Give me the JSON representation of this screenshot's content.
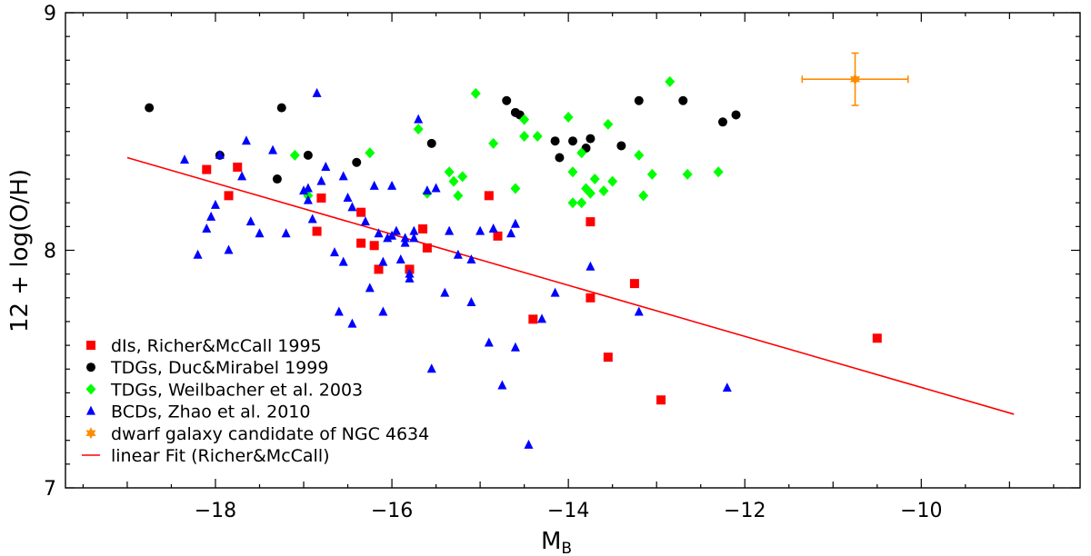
{
  "chart_data": {
    "type": "scatter",
    "title": "",
    "xlabel_main": "M",
    "xlabel_sub": "B",
    "ylabel": "12 + log(O/H)",
    "xlim": [
      -19.7,
      -8.2
    ],
    "ylim": [
      7.0,
      9.0
    ],
    "x_ticks": [
      -18,
      -16,
      -14,
      -12,
      -10
    ],
    "x_tick_labels": [
      "−18",
      "−16",
      "−14",
      "−12",
      "−10"
    ],
    "y_ticks": [
      7,
      8,
      9
    ],
    "y_tick_labels": [
      "7",
      "8",
      "9"
    ],
    "grid": false,
    "legend_position": "bottom-left",
    "series": [
      {
        "name": "dIs, Richer&McCall 1995",
        "marker": "square",
        "color": "#ff0000",
        "points": [
          [
            -18.1,
            8.34
          ],
          [
            -17.75,
            8.35
          ],
          [
            -17.85,
            8.23
          ],
          [
            -16.8,
            8.22
          ],
          [
            -16.35,
            8.16
          ],
          [
            -16.85,
            8.08
          ],
          [
            -16.35,
            8.03
          ],
          [
            -16.2,
            8.02
          ],
          [
            -16.15,
            7.92
          ],
          [
            -15.65,
            8.09
          ],
          [
            -15.6,
            8.01
          ],
          [
            -15.8,
            7.92
          ],
          [
            -14.9,
            8.23
          ],
          [
            -14.8,
            8.06
          ],
          [
            -14.4,
            7.71
          ],
          [
            -13.75,
            8.12
          ],
          [
            -13.75,
            7.8
          ],
          [
            -13.55,
            7.55
          ],
          [
            -13.25,
            7.86
          ],
          [
            -12.95,
            7.37
          ],
          [
            -10.5,
            7.63
          ]
        ]
      },
      {
        "name": "TDGs, Duc&Mirabel 1999",
        "marker": "circle",
        "color": "#000000",
        "points": [
          [
            -18.75,
            8.6
          ],
          [
            -17.25,
            8.6
          ],
          [
            -17.95,
            8.4
          ],
          [
            -16.95,
            8.4
          ],
          [
            -17.3,
            8.3
          ],
          [
            -16.4,
            8.37
          ],
          [
            -15.55,
            8.45
          ],
          [
            -14.7,
            8.63
          ],
          [
            -14.6,
            8.58
          ],
          [
            -14.55,
            8.57
          ],
          [
            -14.15,
            8.46
          ],
          [
            -13.95,
            8.46
          ],
          [
            -13.8,
            8.43
          ],
          [
            -13.75,
            8.47
          ],
          [
            -14.1,
            8.39
          ],
          [
            -13.4,
            8.44
          ],
          [
            -13.2,
            8.63
          ],
          [
            -12.7,
            8.63
          ],
          [
            -12.25,
            8.54
          ],
          [
            -12.1,
            8.57
          ]
        ]
      },
      {
        "name": "TDGs, Weilbacher et al. 2003",
        "marker": "diamond",
        "color": "#00ff00",
        "points": [
          [
            -17.1,
            8.4
          ],
          [
            -16.25,
            8.41
          ],
          [
            -16.95,
            8.23
          ],
          [
            -15.7,
            8.51
          ],
          [
            -15.6,
            8.24
          ],
          [
            -15.35,
            8.33
          ],
          [
            -15.3,
            8.29
          ],
          [
            -15.2,
            8.31
          ],
          [
            -15.25,
            8.23
          ],
          [
            -15.05,
            8.66
          ],
          [
            -14.85,
            8.45
          ],
          [
            -14.6,
            8.26
          ],
          [
            -14.5,
            8.48
          ],
          [
            -14.5,
            8.55
          ],
          [
            -14.35,
            8.48
          ],
          [
            -14.0,
            8.56
          ],
          [
            -13.95,
            8.33
          ],
          [
            -13.95,
            8.2
          ],
          [
            -13.85,
            8.2
          ],
          [
            -13.85,
            8.41
          ],
          [
            -13.8,
            8.26
          ],
          [
            -13.75,
            8.24
          ],
          [
            -13.7,
            8.3
          ],
          [
            -13.6,
            8.25
          ],
          [
            -13.55,
            8.53
          ],
          [
            -13.5,
            8.29
          ],
          [
            -13.2,
            8.4
          ],
          [
            -13.05,
            8.32
          ],
          [
            -13.15,
            8.23
          ],
          [
            -12.85,
            8.71
          ],
          [
            -12.65,
            8.32
          ],
          [
            -12.3,
            8.33
          ]
        ]
      },
      {
        "name": "BCDs, Zhao et al. 2010",
        "marker": "triangle",
        "color": "#0000ff",
        "points": [
          [
            -18.35,
            8.38
          ],
          [
            -18.2,
            7.98
          ],
          [
            -18.0,
            8.19
          ],
          [
            -17.95,
            8.4
          ],
          [
            -18.05,
            8.14
          ],
          [
            -18.1,
            8.09
          ],
          [
            -17.85,
            8.0
          ],
          [
            -17.65,
            8.46
          ],
          [
            -17.6,
            8.12
          ],
          [
            -17.5,
            8.07
          ],
          [
            -17.35,
            8.42
          ],
          [
            -17.2,
            8.07
          ],
          [
            -17.0,
            8.25
          ],
          [
            -16.95,
            8.26
          ],
          [
            -16.95,
            8.21
          ],
          [
            -16.9,
            8.13
          ],
          [
            -16.85,
            8.66
          ],
          [
            -16.8,
            8.29
          ],
          [
            -16.75,
            8.35
          ],
          [
            -16.65,
            7.99
          ],
          [
            -16.6,
            7.74
          ],
          [
            -16.55,
            7.95
          ],
          [
            -16.5,
            8.22
          ],
          [
            -16.45,
            8.18
          ],
          [
            -16.45,
            7.69
          ],
          [
            -16.3,
            8.12
          ],
          [
            -16.25,
            7.84
          ],
          [
            -16.2,
            8.27
          ],
          [
            -16.15,
            8.07
          ],
          [
            -16.1,
            7.74
          ],
          [
            -16.0,
            8.27
          ],
          [
            -16.0,
            8.06
          ],
          [
            -15.95,
            8.08
          ],
          [
            -15.85,
            8.05
          ],
          [
            -15.85,
            8.03
          ],
          [
            -15.8,
            7.9
          ],
          [
            -15.8,
            7.88
          ],
          [
            -15.75,
            8.05
          ],
          [
            -15.75,
            8.08
          ],
          [
            -15.7,
            8.55
          ],
          [
            -15.55,
            7.5
          ],
          [
            -15.5,
            8.26
          ],
          [
            -15.4,
            7.82
          ],
          [
            -15.35,
            8.08
          ],
          [
            -15.25,
            7.98
          ],
          [
            -15.1,
            7.78
          ],
          [
            -15.1,
            7.96
          ],
          [
            -15.0,
            8.08
          ],
          [
            -14.9,
            7.61
          ],
          [
            -14.85,
            8.09
          ],
          [
            -14.75,
            7.43
          ],
          [
            -14.65,
            8.07
          ],
          [
            -14.6,
            7.59
          ],
          [
            -14.6,
            8.11
          ],
          [
            -14.45,
            7.18
          ],
          [
            -14.3,
            7.71
          ],
          [
            -14.15,
            7.82
          ],
          [
            -13.75,
            7.93
          ],
          [
            -13.2,
            7.74
          ],
          [
            -12.2,
            7.42
          ],
          [
            -16.55,
            8.31
          ],
          [
            -16.05,
            8.05
          ],
          [
            -15.9,
            7.96
          ],
          [
            -17.7,
            8.31
          ],
          [
            -16.1,
            7.95
          ],
          [
            -15.6,
            8.25
          ]
        ]
      },
      {
        "name": "dwarf galaxy candidate of NGC 4634",
        "marker": "star",
        "color": "#ff8c00",
        "points": [
          [
            -10.75,
            8.72
          ]
        ],
        "x_err": 0.6,
        "y_err": 0.11
      }
    ],
    "fit_line": {
      "name": "linear Fit (Richer&McCall)",
      "color": "#ff0000",
      "x": [
        -19.0,
        -8.95
      ],
      "y": [
        8.39,
        7.31
      ]
    }
  }
}
